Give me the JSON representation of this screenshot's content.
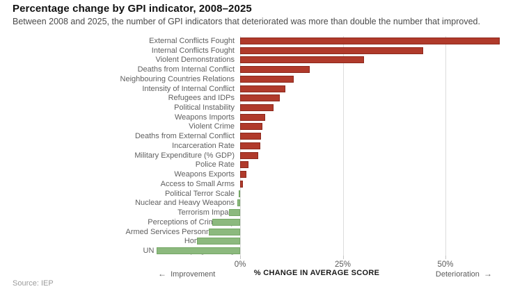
{
  "header": {
    "title": "Percentage change by GPI indicator, 2008–2025",
    "subtitle": "Between 2008 and 2025, the number of GPI indicators that deteriorated was more than double the number that improved."
  },
  "chart_data": {
    "type": "bar",
    "orientation": "horizontal",
    "title": "Percentage change by GPI indicator, 2008–2025",
    "categories": [
      "External Conflicts Fought",
      "Internal Conflicts Fought",
      "Violent Demonstrations",
      "Deaths from Internal Conflict",
      "Neighbouring Countries Relations",
      "Intensity of Internal Conflict",
      "Refugees and IDPs",
      "Political Instability",
      "Weapons Imports",
      "Violent Crime",
      "Deaths from External Conflict",
      "Incarceration Rate",
      "Military Expenditure (% GDP)",
      "Police Rate",
      "Weapons Exports",
      "Access to Small Arms",
      "Political Terror Scale",
      "Nuclear and Heavy Weapons",
      "Terrorism Impact",
      "Perceptions of Criminality",
      "Armed Services Personnel Rate",
      "Homicide Rate",
      "UN Peacekeeping Funding"
    ],
    "values": [
      63.3,
      44.6,
      30.2,
      17.0,
      13.0,
      11.0,
      9.7,
      8.2,
      6.1,
      5.4,
      5.1,
      4.9,
      4.4,
      2.0,
      1.5,
      0.6,
      -0.4,
      -0.7,
      -2.7,
      -6.8,
      -7.7,
      -10.5,
      -20.3
    ],
    "xlabel": "% CHANGE IN AVERAGE SCORE",
    "x_ticks": [
      "0%",
      "25%",
      "50%"
    ],
    "x_tick_values": [
      0,
      25,
      50
    ],
    "xlim": [
      -25,
      68
    ],
    "grid": "vertical",
    "legend": "none",
    "colors": {
      "increase_fill": "#b03a2b",
      "increase_border": "#8c281c",
      "decrease_fill": "#8cb97e",
      "decrease_border": "#74a765",
      "gridline": "#dcdcdc"
    },
    "annotations": {
      "left_arrow": "←",
      "left_label": "Improvement",
      "right_label": "Deterioration",
      "right_arrow": "→"
    }
  },
  "footer": {
    "source": "Source: IEP"
  }
}
